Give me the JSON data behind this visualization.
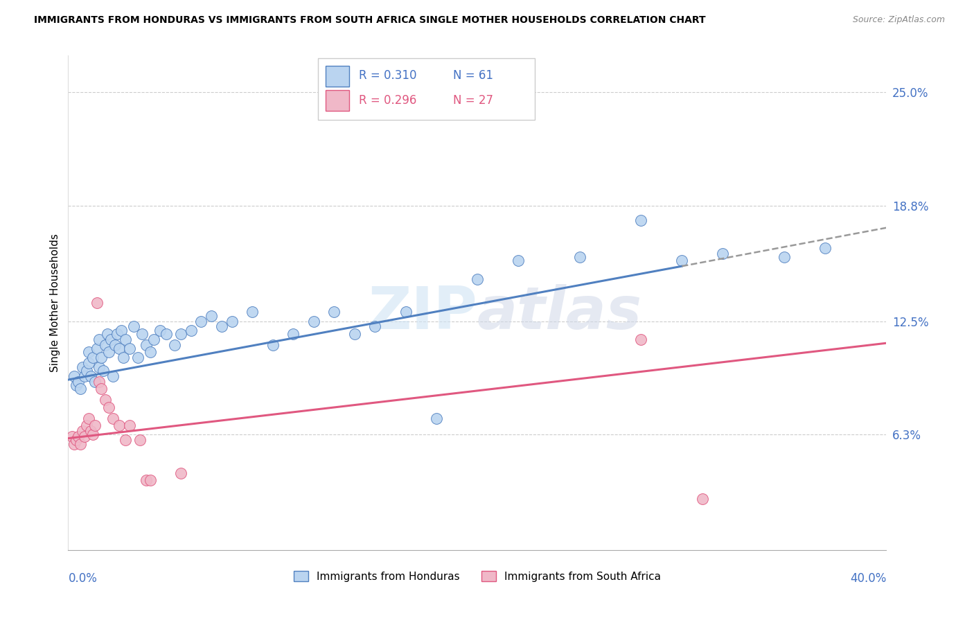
{
  "title": "IMMIGRANTS FROM HONDURAS VS IMMIGRANTS FROM SOUTH AFRICA SINGLE MOTHER HOUSEHOLDS CORRELATION CHART",
  "source": "Source: ZipAtlas.com",
  "ylabel": "Single Mother Households",
  "ytick_labels": [
    "6.3%",
    "12.5%",
    "18.8%",
    "25.0%"
  ],
  "ytick_values": [
    0.063,
    0.125,
    0.188,
    0.25
  ],
  "xlim": [
    0.0,
    0.4
  ],
  "ylim": [
    0.0,
    0.27
  ],
  "color_honduras": "#bad4f0",
  "color_south_africa": "#f0b8c8",
  "color_line_honduras": "#5080c0",
  "color_line_south_africa": "#e05880",
  "color_axis_labels": "#4472c4",
  "honduras_x": [
    0.003,
    0.004,
    0.005,
    0.006,
    0.007,
    0.008,
    0.009,
    0.01,
    0.01,
    0.011,
    0.012,
    0.013,
    0.014,
    0.015,
    0.015,
    0.016,
    0.017,
    0.018,
    0.019,
    0.02,
    0.021,
    0.022,
    0.023,
    0.024,
    0.025,
    0.026,
    0.027,
    0.028,
    0.03,
    0.032,
    0.034,
    0.036,
    0.038,
    0.04,
    0.042,
    0.045,
    0.048,
    0.052,
    0.055,
    0.06,
    0.065,
    0.07,
    0.075,
    0.08,
    0.09,
    0.1,
    0.11,
    0.12,
    0.13,
    0.14,
    0.15,
    0.165,
    0.18,
    0.2,
    0.22,
    0.25,
    0.28,
    0.3,
    0.32,
    0.35,
    0.37
  ],
  "honduras_y": [
    0.095,
    0.09,
    0.092,
    0.088,
    0.1,
    0.095,
    0.098,
    0.102,
    0.108,
    0.095,
    0.105,
    0.092,
    0.11,
    0.1,
    0.115,
    0.105,
    0.098,
    0.112,
    0.118,
    0.108,
    0.115,
    0.095,
    0.112,
    0.118,
    0.11,
    0.12,
    0.105,
    0.115,
    0.11,
    0.122,
    0.105,
    0.118,
    0.112,
    0.108,
    0.115,
    0.12,
    0.118,
    0.112,
    0.118,
    0.12,
    0.125,
    0.128,
    0.122,
    0.125,
    0.13,
    0.112,
    0.118,
    0.125,
    0.13,
    0.118,
    0.122,
    0.13,
    0.072,
    0.148,
    0.158,
    0.16,
    0.18,
    0.158,
    0.162,
    0.16,
    0.165
  ],
  "south_africa_x": [
    0.002,
    0.003,
    0.004,
    0.005,
    0.006,
    0.007,
    0.008,
    0.009,
    0.01,
    0.011,
    0.012,
    0.013,
    0.014,
    0.015,
    0.016,
    0.018,
    0.02,
    0.022,
    0.025,
    0.028,
    0.03,
    0.035,
    0.038,
    0.04,
    0.055,
    0.28,
    0.31
  ],
  "south_africa_y": [
    0.062,
    0.058,
    0.06,
    0.062,
    0.058,
    0.065,
    0.062,
    0.068,
    0.072,
    0.065,
    0.063,
    0.068,
    0.135,
    0.092,
    0.088,
    0.082,
    0.078,
    0.072,
    0.068,
    0.06,
    0.068,
    0.06,
    0.038,
    0.038,
    0.042,
    0.115,
    0.028
  ],
  "h_line_x0": 0.0,
  "h_line_y0": 0.093,
  "h_line_x1": 0.3,
  "h_line_y1": 0.155,
  "h_line_dash_x1": 0.4,
  "h_line_dash_y1": 0.176,
  "s_line_x0": 0.0,
  "s_line_y0": 0.061,
  "s_line_x1": 0.4,
  "s_line_y1": 0.113
}
